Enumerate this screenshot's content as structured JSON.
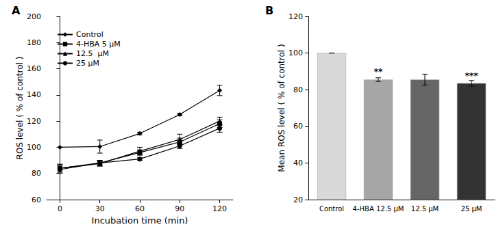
{
  "chart_data": [
    {
      "type": "line",
      "title": "A",
      "x_label": "Incubation time (min)",
      "y_label": "ROS level ( % of control )",
      "x": [
        0,
        30,
        60,
        90,
        120
      ],
      "xlim": [
        -10,
        130
      ],
      "xticks": [
        0,
        30,
        60,
        90,
        120
      ],
      "ylim": [
        60,
        200
      ],
      "yticks": [
        60,
        80,
        100,
        120,
        140,
        160,
        180,
        200
      ],
      "grid": false,
      "legend": "upper left",
      "series": [
        {
          "name": "Control",
          "color": "#000000",
          "marker": "diamond",
          "values": [
            100,
            100.5,
            110.5,
            125,
            143.5
          ],
          "errors": [
            0,
            5,
            1,
            1,
            4
          ]
        },
        {
          "name": "4-HBA 5 μM",
          "color": "#000000",
          "marker": "square",
          "values": [
            84,
            88,
            96,
            104,
            118
          ],
          "errors": [
            3,
            2,
            2,
            3,
            3
          ]
        },
        {
          "name": "12.5  μM",
          "color": "#000000",
          "marker": "triangle",
          "values": [
            84,
            87.5,
            97,
            106,
            120
          ],
          "errors": [
            3,
            2,
            3,
            4,
            3
          ]
        },
        {
          "name": "25 μM",
          "color": "#000000",
          "marker": "circle",
          "values": [
            83,
            88,
            91,
            101,
            114.5
          ],
          "errors": [
            3,
            2,
            1,
            2,
            3
          ]
        }
      ]
    },
    {
      "type": "bar",
      "title": "B",
      "y_label": "Mean ROS level ( % of control )",
      "categories": [
        "Control",
        "4-HBA 12.5 μM",
        "12.5 μM",
        "25 μM"
      ],
      "values": [
        100,
        85.5,
        85.5,
        83.5
      ],
      "errors": [
        0,
        1,
        3,
        1.5
      ],
      "significance": [
        null,
        "**",
        null,
        "***"
      ],
      "colors": [
        "#d9d9d9",
        "#a6a6a6",
        "#666666",
        "#333333"
      ],
      "ylim": [
        20,
        120
      ],
      "yticks": [
        20,
        40,
        60,
        80,
        100,
        120
      ],
      "grid": false
    }
  ]
}
